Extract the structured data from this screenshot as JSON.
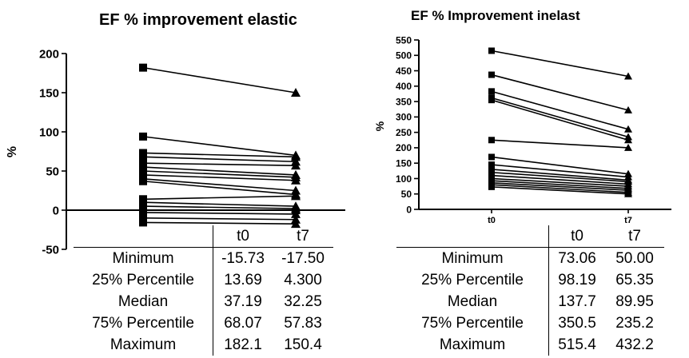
{
  "chart_data": [
    {
      "type": "line",
      "title": "EF % improvement elastic",
      "xlabel": "",
      "ylabel": "%",
      "categories": [
        "t0",
        "t7"
      ],
      "y_ticks": [
        -50,
        0,
        50,
        100,
        150,
        200
      ],
      "ylim": [
        -50,
        200
      ],
      "series": [
        {
          "values": [
            182,
            150
          ]
        },
        {
          "values": [
            94,
            70
          ]
        },
        {
          "values": [
            73,
            68
          ]
        },
        {
          "values": [
            68,
            62
          ]
        },
        {
          "values": [
            60,
            57
          ]
        },
        {
          "values": [
            55,
            45
          ]
        },
        {
          "values": [
            50,
            42
          ]
        },
        {
          "values": [
            45,
            38
          ]
        },
        {
          "values": [
            40,
            25
          ]
        },
        {
          "values": [
            37,
            20
          ]
        },
        {
          "values": [
            14,
            18
          ]
        },
        {
          "values": [
            10,
            5
          ]
        },
        {
          "values": [
            5,
            2
          ]
        },
        {
          "values": [
            0,
            0
          ]
        },
        {
          "values": [
            -3,
            -5
          ]
        },
        {
          "values": [
            -10,
            -12
          ]
        },
        {
          "values": [
            -15.73,
            -17.5
          ]
        }
      ],
      "stats": {
        "columns": [
          "t0",
          "t7"
        ],
        "rows": [
          {
            "label": "Minimum",
            "values": [
              "-15.73",
              "-17.50"
            ]
          },
          {
            "label": "25% Percentile",
            "values": [
              "13.69",
              "4.300"
            ]
          },
          {
            "label": "Median",
            "values": [
              "37.19",
              "32.25"
            ]
          },
          {
            "label": "75% Percentile",
            "values": [
              "68.07",
              "57.83"
            ]
          },
          {
            "label": "Maximum",
            "values": [
              "182.1",
              "150.4"
            ]
          }
        ]
      }
    },
    {
      "type": "line",
      "title": "EF % Improvement  inelast",
      "xlabel": "",
      "ylabel": "%",
      "categories": [
        "t0",
        "t7"
      ],
      "y_ticks": [
        0,
        50,
        100,
        150,
        200,
        250,
        300,
        350,
        400,
        450,
        500,
        550
      ],
      "ylim": [
        0,
        550
      ],
      "series": [
        {
          "values": [
            515,
            432
          ]
        },
        {
          "values": [
            437,
            322
          ]
        },
        {
          "values": [
            383,
            260
          ]
        },
        {
          "values": [
            362,
            235
          ]
        },
        {
          "values": [
            355,
            225
          ]
        },
        {
          "values": [
            225,
            200
          ]
        },
        {
          "values": [
            170,
            115
          ]
        },
        {
          "values": [
            145,
            105
          ]
        },
        {
          "values": [
            130,
            95
          ]
        },
        {
          "values": [
            120,
            90
          ]
        },
        {
          "values": [
            110,
            82
          ]
        },
        {
          "values": [
            100,
            75
          ]
        },
        {
          "values": [
            93,
            68
          ]
        },
        {
          "values": [
            86,
            62
          ]
        },
        {
          "values": [
            80,
            55
          ]
        },
        {
          "values": [
            73,
            50
          ]
        }
      ],
      "stats": {
        "columns": [
          "t0",
          "t7"
        ],
        "rows": [
          {
            "label": "Minimum",
            "values": [
              "73.06",
              "50.00"
            ]
          },
          {
            "label": "25% Percentile",
            "values": [
              "98.19",
              "65.35"
            ]
          },
          {
            "label": "Median",
            "values": [
              "137.7",
              "89.95"
            ]
          },
          {
            "label": "75% Percentile",
            "values": [
              "350.5",
              "235.2"
            ]
          },
          {
            "label": "Maximum",
            "values": [
              "515.4",
              "432.2"
            ]
          }
        ]
      }
    }
  ]
}
